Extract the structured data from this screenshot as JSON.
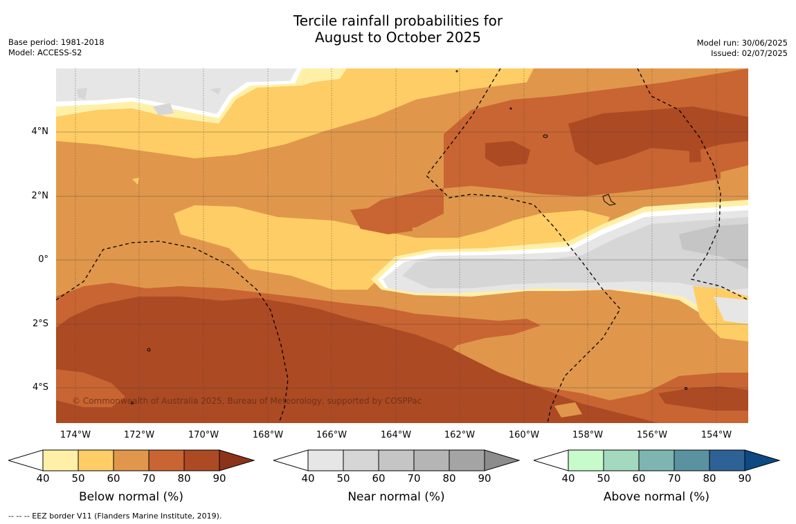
{
  "title_line1": "Tercile rainfall probabilities for",
  "title_line2": "August to October 2025",
  "meta_left": {
    "line1": "Base period: 1981-2018",
    "line2": "Model: ACCESS-S2"
  },
  "meta_right": {
    "line1": "Model run: 30/06/2025",
    "line2": "Issued: 02/07/2025"
  },
  "copyright": "© Commonwealth of Australia 2025, Bureau of Meteorology, supported by COSPPac",
  "lat_labels": [
    "4°N",
    "2°N",
    "0°",
    "2°S",
    "4°S"
  ],
  "lon_labels": [
    "174°W",
    "172°W",
    "170°W",
    "168°W",
    "166°W",
    "164°W",
    "162°W",
    "160°W",
    "158°W",
    "156°W",
    "154°W"
  ],
  "colorbars": [
    {
      "title": "Below normal (%)",
      "ticks": [
        "40",
        "50",
        "60",
        "70",
        "80",
        "90"
      ],
      "colors": [
        "#fff0a8",
        "#fecd65",
        "#e0974b",
        "#c96532",
        "#ac4a24"
      ],
      "over": "#8d3319"
    },
    {
      "title": "Near normal (%)",
      "ticks": [
        "40",
        "50",
        "60",
        "70",
        "80",
        "90"
      ],
      "colors": [
        "#e6e6e6",
        "#d6d6d6",
        "#c5c5c5",
        "#b5b5b5",
        "#a4a4a4"
      ],
      "over": "#8c8c8c"
    },
    {
      "title": "Above normal (%)",
      "ticks": [
        "40",
        "50",
        "60",
        "70",
        "80",
        "90"
      ],
      "colors": [
        "#c8fbcc",
        "#a3d9bf",
        "#7eb5b0",
        "#5a92a0",
        "#2e6296"
      ],
      "over": "#0d4a84"
    }
  ],
  "footnote": "--  --  -- EEZ border V11 (Flanders Marine Institute, 2019)."
}
